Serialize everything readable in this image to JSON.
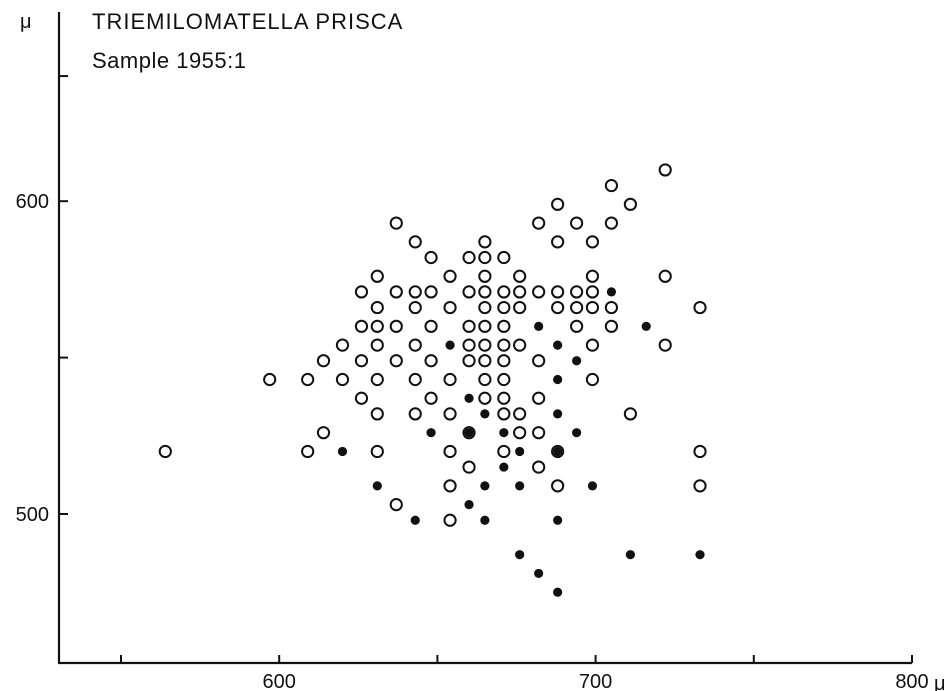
{
  "chart_data": {
    "type": "scatter",
    "title": "TRIEMILOMATELLA PRISCA",
    "subtitle": "Sample 1955:1",
    "xlabel": "",
    "ylabel": "",
    "x_unit": "μ",
    "y_unit": "μ",
    "xlim": [
      530,
      800
    ],
    "ylim": [
      455,
      650
    ],
    "x_ticks": [
      550,
      600,
      650,
      700,
      750,
      800
    ],
    "x_tick_labels": [
      "",
      "600",
      "",
      "700",
      "",
      "800"
    ],
    "y_ticks": [
      500,
      550,
      600,
      640
    ],
    "y_tick_labels": [
      "500",
      "",
      "600",
      ""
    ],
    "grid": false,
    "series": [
      {
        "marker": "open-circle",
        "points": [
          [
            722,
            610
          ],
          [
            705,
            605
          ],
          [
            711,
            599
          ],
          [
            688,
            599
          ],
          [
            637,
            593
          ],
          [
            682,
            593
          ],
          [
            694,
            593
          ],
          [
            705,
            593
          ],
          [
            643,
            587
          ],
          [
            665,
            587
          ],
          [
            688,
            587
          ],
          [
            699,
            587
          ],
          [
            648,
            582
          ],
          [
            660,
            582
          ],
          [
            665,
            582
          ],
          [
            671,
            582
          ],
          [
            654,
            576
          ],
          [
            665,
            576
          ],
          [
            676,
            576
          ],
          [
            699,
            576
          ],
          [
            722,
            576
          ],
          [
            631,
            576
          ],
          [
            626,
            571
          ],
          [
            637,
            571
          ],
          [
            643,
            571
          ],
          [
            648,
            571
          ],
          [
            660,
            571
          ],
          [
            665,
            571
          ],
          [
            671,
            571
          ],
          [
            676,
            571
          ],
          [
            682,
            571
          ],
          [
            688,
            571
          ],
          [
            694,
            571
          ],
          [
            699,
            571
          ],
          [
            631,
            566
          ],
          [
            643,
            566
          ],
          [
            654,
            566
          ],
          [
            665,
            566
          ],
          [
            671,
            566
          ],
          [
            676,
            566
          ],
          [
            688,
            566
          ],
          [
            694,
            566
          ],
          [
            699,
            566
          ],
          [
            705,
            566
          ],
          [
            733,
            566
          ],
          [
            626,
            560
          ],
          [
            631,
            560
          ],
          [
            637,
            560
          ],
          [
            648,
            560
          ],
          [
            660,
            560
          ],
          [
            665,
            560
          ],
          [
            671,
            560
          ],
          [
            694,
            560
          ],
          [
            705,
            560
          ],
          [
            620,
            554
          ],
          [
            631,
            554
          ],
          [
            643,
            554
          ],
          [
            660,
            554
          ],
          [
            665,
            554
          ],
          [
            671,
            554
          ],
          [
            676,
            554
          ],
          [
            699,
            554
          ],
          [
            722,
            554
          ],
          [
            614,
            549
          ],
          [
            626,
            549
          ],
          [
            637,
            549
          ],
          [
            648,
            549
          ],
          [
            660,
            549
          ],
          [
            665,
            549
          ],
          [
            671,
            549
          ],
          [
            682,
            549
          ],
          [
            597,
            543
          ],
          [
            609,
            543
          ],
          [
            620,
            543
          ],
          [
            631,
            543
          ],
          [
            643,
            543
          ],
          [
            654,
            543
          ],
          [
            665,
            543
          ],
          [
            671,
            543
          ],
          [
            699,
            543
          ],
          [
            626,
            537
          ],
          [
            648,
            537
          ],
          [
            665,
            537
          ],
          [
            671,
            537
          ],
          [
            682,
            537
          ],
          [
            631,
            532
          ],
          [
            643,
            532
          ],
          [
            654,
            532
          ],
          [
            671,
            532
          ],
          [
            676,
            532
          ],
          [
            711,
            532
          ],
          [
            614,
            526
          ],
          [
            660,
            526
          ],
          [
            676,
            526
          ],
          [
            682,
            526
          ],
          [
            564,
            520
          ],
          [
            609,
            520
          ],
          [
            631,
            520
          ],
          [
            654,
            520
          ],
          [
            671,
            520
          ],
          [
            688,
            520
          ],
          [
            733,
            520
          ],
          [
            660,
            515
          ],
          [
            682,
            515
          ],
          [
            654,
            509
          ],
          [
            688,
            509
          ],
          [
            733,
            509
          ],
          [
            637,
            503
          ],
          [
            654,
            498
          ]
        ]
      },
      {
        "marker": "filled-dot",
        "points": [
          [
            705,
            571
          ],
          [
            682,
            560
          ],
          [
            716,
            560
          ],
          [
            654,
            554
          ],
          [
            688,
            554
          ],
          [
            694,
            549
          ],
          [
            688,
            543
          ],
          [
            660,
            537
          ],
          [
            665,
            532
          ],
          [
            688,
            532
          ],
          [
            648,
            526
          ],
          [
            660,
            526
          ],
          [
            671,
            526
          ],
          [
            694,
            526
          ],
          [
            620,
            520
          ],
          [
            676,
            520
          ],
          [
            688,
            520
          ],
          [
            671,
            515
          ],
          [
            631,
            509
          ],
          [
            665,
            509
          ],
          [
            676,
            509
          ],
          [
            699,
            509
          ],
          [
            660,
            503
          ],
          [
            643,
            498
          ],
          [
            665,
            498
          ],
          [
            688,
            498
          ],
          [
            676,
            487
          ],
          [
            711,
            487
          ],
          [
            733,
            487
          ],
          [
            682,
            481
          ],
          [
            688,
            475
          ]
        ]
      }
    ]
  },
  "labels": {
    "title": "TRIEMILOMATELLA PRISCA",
    "subtitle": "Sample 1955:1",
    "y_unit": "μ",
    "x_unit": "μ"
  }
}
